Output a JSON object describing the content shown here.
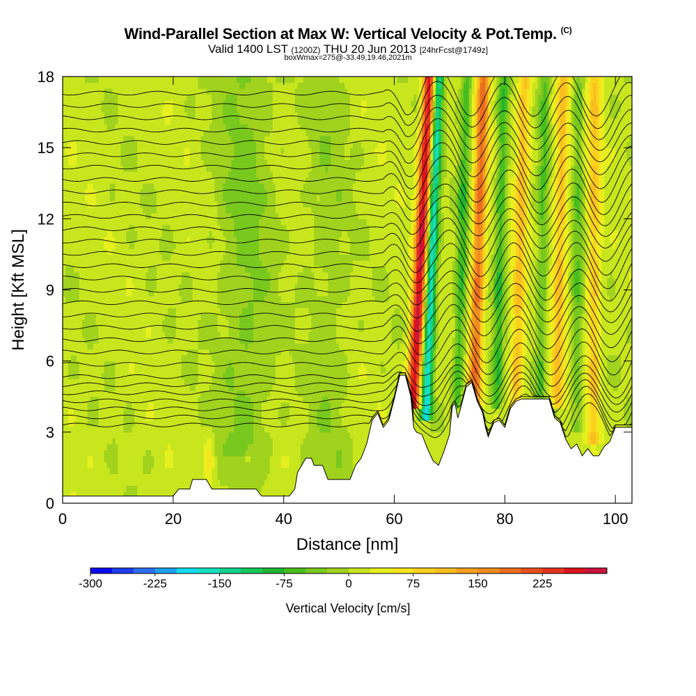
{
  "header": {
    "title": "Wind-Parallel Section at Max W: Vertical Velocity & Pot.Temp.",
    "copyright_mark": "(C)",
    "valid_main": "Valid 1400 LST",
    "valid_utc": "(1200Z)",
    "valid_date": "THU 20 Jun 2013",
    "forecast": "[24hrFcst@1749z]",
    "box_info": "boxWmax=275@-33.49,19.46,2021m"
  },
  "chart_data": {
    "type": "heatmap",
    "title": "Wind-Parallel Section at Max W: Vertical Velocity & Pot.Temp.",
    "xlabel": "Distance [nm]",
    "ylabel": "Height [Kft MSL]",
    "xlim": [
      0,
      103
    ],
    "ylim": [
      0,
      18
    ],
    "x_ticks": [
      0,
      20,
      40,
      60,
      80,
      100
    ],
    "y_ticks": [
      0,
      3,
      6,
      9,
      12,
      15,
      18
    ],
    "colorbar": {
      "label": "Vertical Velocity [cm/s]",
      "min": -300,
      "max": 275,
      "step": 25,
      "tick_values": [
        -300,
        -225,
        -150,
        -75,
        0,
        75,
        150,
        225
      ],
      "tick_labels": [
        "-300",
        "-225",
        "-150",
        "-75",
        "0",
        "75",
        "150",
        "225"
      ],
      "colors": [
        "#0a0af0",
        "#1e3cf0",
        "#2d6ef0",
        "#1ea0f0",
        "#14dcf0",
        "#14e0c0",
        "#14d28c",
        "#14c85a",
        "#1eb432",
        "#46be1e",
        "#78c81e",
        "#a0d21e",
        "#c8e61e",
        "#e6f01e",
        "#f5e61e",
        "#fad21e",
        "#fabe1e",
        "#f5a01e",
        "#f08c1e",
        "#eb6e1e",
        "#e6501e",
        "#e6321e",
        "#dc141e",
        "#c8143c"
      ]
    },
    "terrain_kft": [
      [
        0,
        0.3
      ],
      [
        20,
        0.3
      ],
      [
        21,
        0.6
      ],
      [
        23,
        0.6
      ],
      [
        23.5,
        1.0
      ],
      [
        26,
        1.0
      ],
      [
        27,
        0.6
      ],
      [
        35,
        0.6
      ],
      [
        36,
        0.3
      ],
      [
        41,
        0.3
      ],
      [
        42,
        0.6
      ],
      [
        42.5,
        1.3
      ],
      [
        44,
        1.9
      ],
      [
        45,
        1.9
      ],
      [
        45.5,
        1.6
      ],
      [
        47,
        1.6
      ],
      [
        48,
        1.0
      ],
      [
        52,
        1.0
      ],
      [
        53,
        1.6
      ],
      [
        54,
        1.9
      ],
      [
        55,
        2.5
      ],
      [
        56,
        3.5
      ],
      [
        57,
        3.8
      ],
      [
        58,
        3.2
      ],
      [
        59,
        3.5
      ],
      [
        60,
        4.4
      ],
      [
        61,
        5.4
      ],
      [
        62,
        5.4
      ],
      [
        63,
        4.5
      ],
      [
        63.5,
        3.2
      ],
      [
        64,
        3.0
      ],
      [
        65,
        2.9
      ],
      [
        66,
        2.3
      ],
      [
        67,
        1.8
      ],
      [
        68,
        1.6
      ],
      [
        69,
        2.2
      ],
      [
        70,
        2.9
      ],
      [
        70.5,
        4.1
      ],
      [
        71,
        4.2
      ],
      [
        71.5,
        3.6
      ],
      [
        72,
        4.0
      ],
      [
        73,
        4.9
      ],
      [
        74,
        5.1
      ],
      [
        75,
        4.3
      ],
      [
        76,
        3.8
      ],
      [
        76.5,
        3.2
      ],
      [
        77,
        2.8
      ],
      [
        78,
        3.4
      ],
      [
        79,
        3.5
      ],
      [
        80,
        3.2
      ],
      [
        81,
        4.0
      ],
      [
        82,
        4.3
      ],
      [
        83,
        4.4
      ],
      [
        88,
        4.4
      ],
      [
        89,
        3.6
      ],
      [
        90,
        3.4
      ],
      [
        91,
        2.7
      ],
      [
        92,
        2.3
      ],
      [
        93,
        2.5
      ],
      [
        94,
        2.0
      ],
      [
        95,
        2.3
      ],
      [
        96,
        2.0
      ],
      [
        97,
        2.0
      ],
      [
        98,
        2.4
      ],
      [
        99,
        2.6
      ],
      [
        100,
        3.2
      ],
      [
        103,
        3.2
      ]
    ],
    "updraft_bands": [
      {
        "center_nm": 63.5,
        "base_kft": 4.5,
        "tilt_nm_per_kft": 0.22,
        "value": 275
      },
      {
        "center_nm": 74.5,
        "base_kft": 4.5,
        "tilt_nm_per_kft": 0.12,
        "value": 175
      },
      {
        "center_nm": 82.0,
        "base_kft": 4.5,
        "tilt_nm_per_kft": 0.12,
        "value": 100
      },
      {
        "center_nm": 89.5,
        "base_kft": 4.5,
        "tilt_nm_per_kft": 0.08,
        "value": 100
      },
      {
        "center_nm": 96.0,
        "base_kft": 3.0,
        "tilt_nm_per_kft": 0.02,
        "value": 90
      }
    ],
    "downdraft_bands": [
      {
        "center_nm": 65.8,
        "base_kft": 4.0,
        "tilt_nm_per_kft": 0.15,
        "value": -190
      },
      {
        "center_nm": 71.5,
        "base_kft": 4.5,
        "tilt_nm_per_kft": 0.12,
        "value": -80
      },
      {
        "center_nm": 78.5,
        "base_kft": 4.5,
        "tilt_nm_per_kft": 0.1,
        "value": -80
      },
      {
        "center_nm": 86.5,
        "base_kft": 4.5,
        "tilt_nm_per_kft": 0.05,
        "value": -60
      },
      {
        "center_nm": 93.0,
        "base_kft": 3.5,
        "tilt_nm_per_kft": 0.02,
        "value": -55
      }
    ],
    "isentrope_levels": 30
  }
}
